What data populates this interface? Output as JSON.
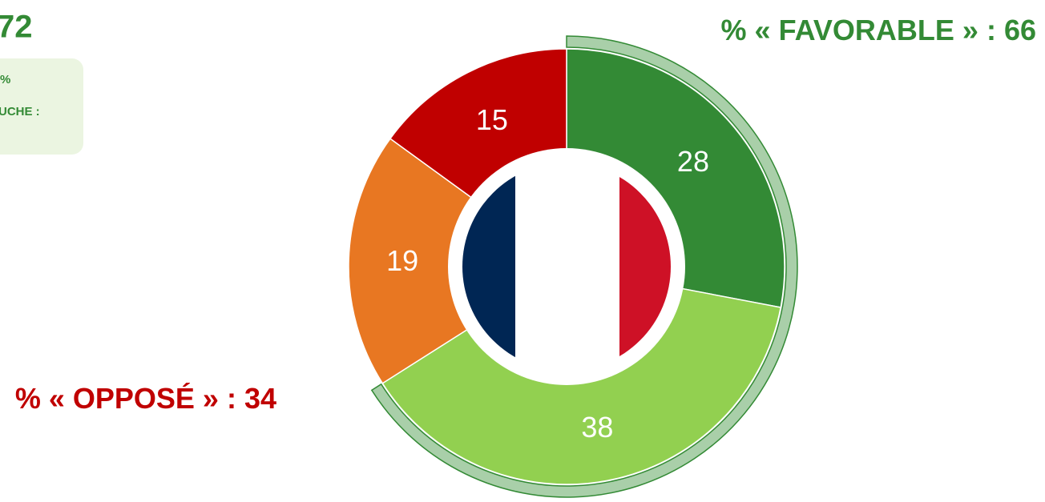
{
  "chart_data": {
    "type": "donut",
    "values": [
      28,
      38,
      19,
      15
    ],
    "colors": [
      "#338a35",
      "#92d050",
      "#e87722",
      "#c00000"
    ],
    "annotations": [
      {
        "text": "% « FAVORABLE » :",
        "value": 66,
        "color": "#338a35"
      },
      {
        "text": "% « OPPOSÉ » :",
        "value": 34,
        "color": "#c00000"
      }
    ],
    "side_panel": {
      "number": "72",
      "lines": [
        "%",
        "UCHE :"
      ]
    }
  }
}
